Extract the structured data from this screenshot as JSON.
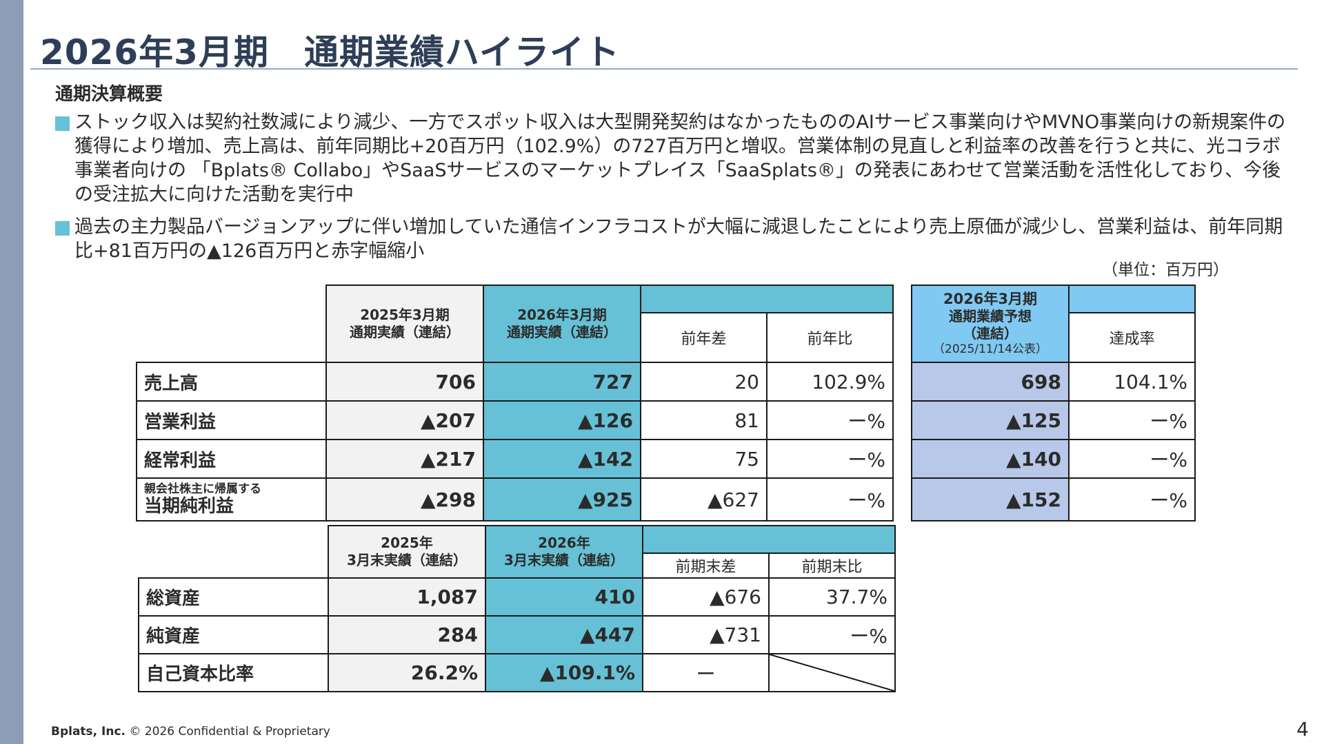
{
  "slide": {
    "title": "2026年3月期　通期業績ハイライト",
    "section_heading": "通期決算概要",
    "bullets": [
      "ストック収入は契約社数減により減少、一方でスポット収入は大型開発契約はなかったもののAIサービス事業向けやMVNO事業向けの新規案件の獲得により増加、売上高は、前年同期比+20百万円（102.9%）の727百万円と増収。営業体制の見直しと利益率の改善を行うと共に、光コラボ事業者向けの 「Bplats® Collabo」やSaaSサービスのマーケットプレイス「SaaSplats®」の発表にあわせて営業活動を活性化しており、今後の受注拡大に向けた活動を実行中",
      "過去の主力製品バージョンアップに伴い増加していた通信インフラコストが大幅に減退したことにより売上原価が減少し、営業利益は、前年同期比+81百万円の▲126百万円と赤字幅縮小"
    ],
    "unit_note": "（単位：百万円）"
  },
  "pl_table": {
    "headers": {
      "prev_line1": "2025年3月期",
      "prev_line2": "通期実績（連結）",
      "curr_line1": "2026年3月期",
      "curr_line2": "通期実績（連結）",
      "diff": "前年差",
      "ratio": "前年比"
    },
    "rows": [
      {
        "label": "売上高",
        "prev": "706",
        "curr": "727",
        "diff": "20",
        "ratio": "102.9%"
      },
      {
        "label": "営業利益",
        "prev": "▲207",
        "curr": "▲126",
        "diff": "81",
        "ratio": "ー%"
      },
      {
        "label": "経常利益",
        "prev": "▲217",
        "curr": "▲142",
        "diff": "75",
        "ratio": "ー%"
      },
      {
        "label_small": "親会社株主に帰属する",
        "label": "当期純利益",
        "prev": "▲298",
        "curr": "▲925",
        "diff": "▲627",
        "ratio": "ー%"
      }
    ]
  },
  "forecast_table": {
    "headers": {
      "line1": "2026年3月期",
      "line2": "通期業績予想",
      "line3": "（連結）",
      "line4": "（2025/11/14公表）",
      "achievement": "達成率"
    },
    "rows": [
      {
        "forecast": "698",
        "rate": "104.1%"
      },
      {
        "forecast": "▲125",
        "rate": "ー%"
      },
      {
        "forecast": "▲140",
        "rate": "ー%"
      },
      {
        "forecast": "▲152",
        "rate": "ー%"
      }
    ]
  },
  "bs_table": {
    "headers": {
      "prev_line1": "2025年",
      "prev_line2": "3月末実績（連結）",
      "curr_line1": "2026年",
      "curr_line2": "3月末実績（連結）",
      "diff": "前期末差",
      "ratio": "前期末比"
    },
    "rows": [
      {
        "label": "総資産",
        "prev": "1,087",
        "curr": "410",
        "diff": "▲676",
        "ratio": "37.7%"
      },
      {
        "label": "純資産",
        "prev": "284",
        "curr": "▲447",
        "diff": "▲731",
        "ratio": "ー%"
      },
      {
        "label": "自己資本比率",
        "prev": "26.2%",
        "curr": "▲109.1%",
        "diff": "ー",
        "ratio": ""
      }
    ]
  },
  "footer": {
    "company": "Bplats, Inc.",
    "copyright": " © 2026 Confidential & Proprietary",
    "page_number": "4"
  }
}
